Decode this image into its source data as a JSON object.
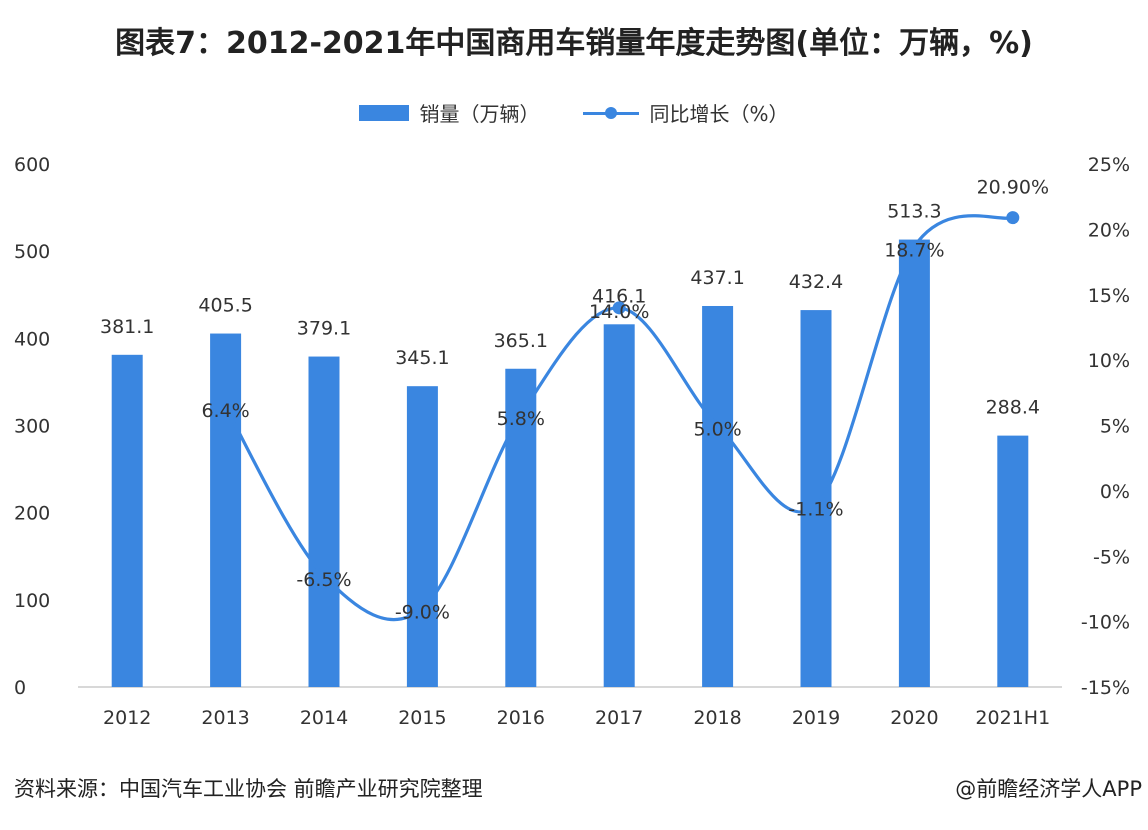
{
  "title": "图表7：2012-2021年中国商用车销量年度走势图(单位：万辆，%)",
  "legend": {
    "bar_label": "销量（万辆）",
    "line_label": "同比增长（%）"
  },
  "source": "资料来源：中国汽车工业协会 前瞻产业研究院整理",
  "credit": "@前瞻经济学人APP",
  "colors": {
    "bar": "#3a86e0",
    "line": "#3a86e0",
    "text": "#333333",
    "axis": "#cccccc"
  },
  "chart_data": {
    "type": "bar+line",
    "categories": [
      "2012",
      "2013",
      "2014",
      "2015",
      "2016",
      "2017",
      "2018",
      "2019",
      "2020",
      "2021H1"
    ],
    "series": [
      {
        "name": "销量（万辆）",
        "type": "bar",
        "axis": "left",
        "values": [
          381.1,
          405.5,
          379.1,
          345.1,
          365.1,
          416.1,
          437.1,
          432.4,
          513.3,
          288.4
        ],
        "labels": [
          "381.1",
          "405.5",
          "379.1",
          "345.1",
          "365.1",
          "416.1",
          "437.1",
          "432.4",
          "513.3",
          "288.4"
        ]
      },
      {
        "name": "同比增长（%）",
        "type": "line",
        "axis": "right",
        "values": [
          null,
          6.4,
          -6.5,
          -9.0,
          5.8,
          14.0,
          5.0,
          -1.1,
          18.7,
          20.9
        ],
        "labels": [
          null,
          "6.4%",
          "-6.5%",
          "-9.0%",
          "5.8%",
          "14.0%",
          "5.0%",
          "-1.1%",
          "18.7%",
          "20.90%"
        ]
      }
    ],
    "y_left": {
      "min": 0,
      "max": 600,
      "ticks": [
        "0",
        "100",
        "200",
        "300",
        "400",
        "500",
        "600"
      ]
    },
    "y_right": {
      "min": -15,
      "max": 25,
      "ticks": [
        "-15%",
        "-10%",
        "-5%",
        "0%",
        "5%",
        "10%",
        "15%",
        "20%",
        "25%"
      ]
    },
    "grid": false,
    "legend_position": "top-center"
  }
}
